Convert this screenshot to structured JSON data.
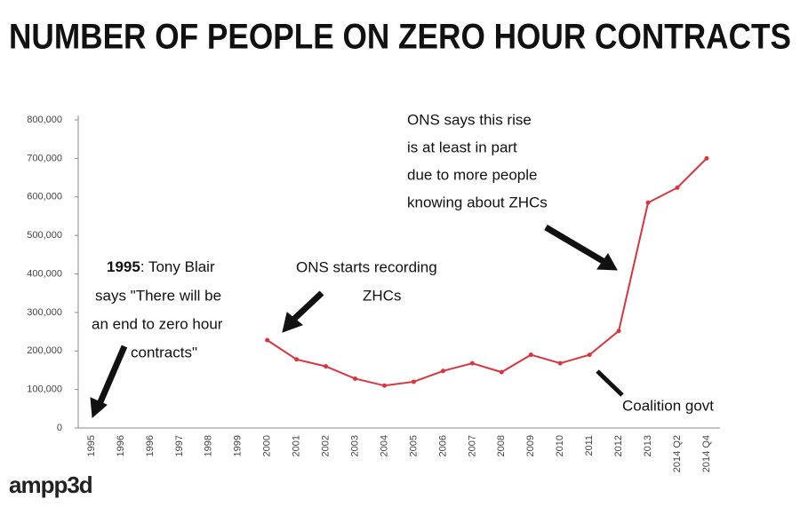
{
  "chart_data": {
    "type": "line",
    "title": "NUMBER OF PEOPLE ON ZERO HOUR CONTRACTS",
    "categories": [
      "1995",
      "1996",
      "1996",
      "1997",
      "1998",
      "1999",
      "2000",
      "2001",
      "2002",
      "2003",
      "2004",
      "2005",
      "2006",
      "2007",
      "2008",
      "2009",
      "2010",
      "2011",
      "2012",
      "2013",
      "2014 Q2",
      "2014 Q4"
    ],
    "series": [
      {
        "name": "Zero hour contracts",
        "color": "#d8353f",
        "values": [
          null,
          null,
          null,
          null,
          null,
          null,
          228000,
          178000,
          160000,
          128000,
          110000,
          120000,
          148000,
          168000,
          145000,
          190000,
          168000,
          190000,
          252000,
          585000,
          624000,
          700000
        ]
      }
    ],
    "ylim": [
      0,
      800000
    ],
    "yticks": [
      0,
      {
        "value": 100000,
        "label": "100,000"
      },
      {
        "value": 200000,
        "label": "200,000"
      },
      {
        "value": 300000,
        "label": "300,000"
      },
      {
        "value": 400000,
        "label": "400,000"
      },
      {
        "value": 500000,
        "label": "500,000"
      },
      {
        "value": 600000,
        "label": "600,000"
      },
      {
        "value": 700000,
        "label": "700,000"
      },
      {
        "value": 800000,
        "label": "800,000"
      }
    ],
    "annotations": [
      {
        "year": "1995",
        "text": ": Tony Blair",
        "lines": [
          "says \"There will be",
          "an end to zero hour",
          "contracts\""
        ]
      },
      {
        "lines": [
          "ONS starts recording",
          "ZHCs"
        ]
      },
      {
        "lines": [
          "ONS says this rise",
          "is at least in part",
          "due to more people",
          "knowing about ZHCs"
        ]
      },
      {
        "lines": [
          "Coalition govt"
        ]
      }
    ],
    "logo": "ampp3d"
  }
}
